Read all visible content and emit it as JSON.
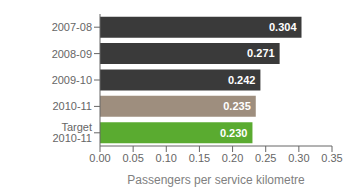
{
  "chart_data": {
    "type": "bar",
    "orientation": "horizontal",
    "categories": [
      "2007-08",
      "2008-09",
      "2009-10",
      "2010-11",
      "Target 2010-11"
    ],
    "values": [
      0.304,
      0.271,
      0.242,
      0.235,
      0.23
    ],
    "value_labels": [
      "0.304",
      "0.271",
      "0.242",
      "0.235",
      "0.230"
    ],
    "colors": [
      "#3a3a3a",
      "#3a3a3a",
      "#3a3a3a",
      "#9e8e7e",
      "#5aab30"
    ],
    "xlabel": "Passengers per service kilometre",
    "xlim": [
      0,
      0.35
    ],
    "xticks": [
      {
        "value": 0,
        "label": "0.00"
      },
      0.05,
      {
        "value": 0.1,
        "label": "0.10"
      },
      0.15,
      {
        "value": 0.2,
        "label": "0.20"
      },
      0.25,
      {
        "value": 0.3,
        "label": "0.30"
      },
      0.35
    ],
    "data_labels": true,
    "grid": false
  }
}
